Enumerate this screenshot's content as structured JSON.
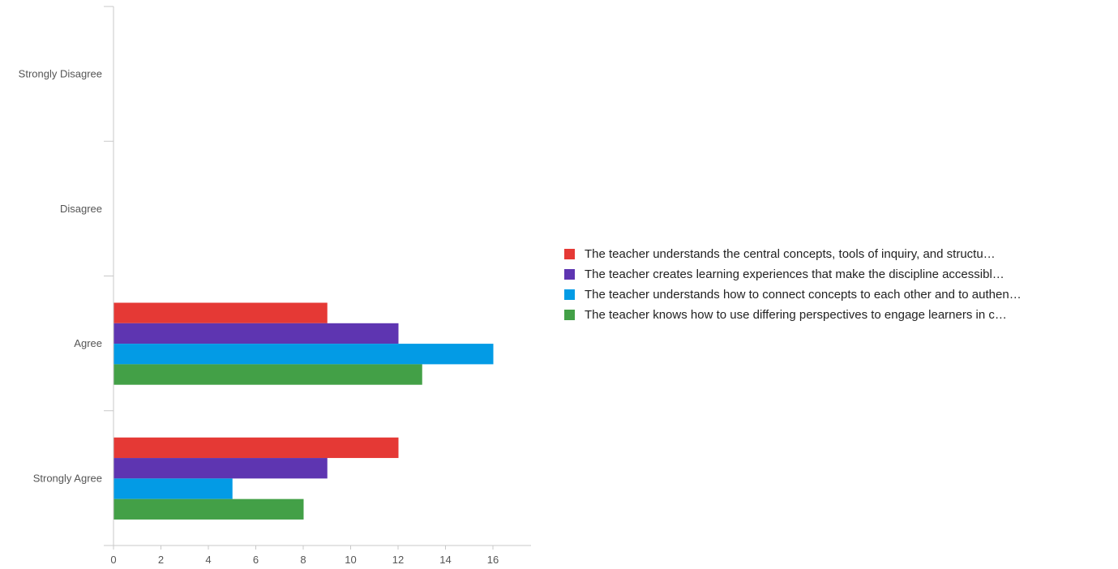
{
  "chart_data": {
    "type": "bar",
    "orientation": "horizontal",
    "categories": [
      "Strongly Disagree",
      "Disagree",
      "Agree",
      "Strongly Agree"
    ],
    "series": [
      {
        "name": "The teacher understands the central concepts, tools of inquiry, and structu…",
        "color": "#e53935",
        "values": [
          0,
          0,
          9,
          12
        ]
      },
      {
        "name": "The teacher creates learning experiences that make the discipline accessibl…",
        "color": "#5e35b1",
        "values": [
          0,
          0,
          12,
          9
        ]
      },
      {
        "name": "The teacher understands how to connect concepts to each other and to authen…",
        "color": "#039be5",
        "values": [
          0,
          0,
          16,
          5
        ]
      },
      {
        "name": "The teacher knows how to use differing perspectives to engage learners in c…",
        "color": "#43a047",
        "values": [
          0,
          0,
          13,
          8
        ]
      }
    ],
    "x_ticks": [
      "0",
      "2",
      "4",
      "6",
      "8",
      "10",
      "12",
      "14",
      "16"
    ],
    "xlim": [
      0,
      17.6
    ],
    "title": "",
    "xlabel": "",
    "ylabel": "",
    "legend_position": "right",
    "grid": false
  }
}
